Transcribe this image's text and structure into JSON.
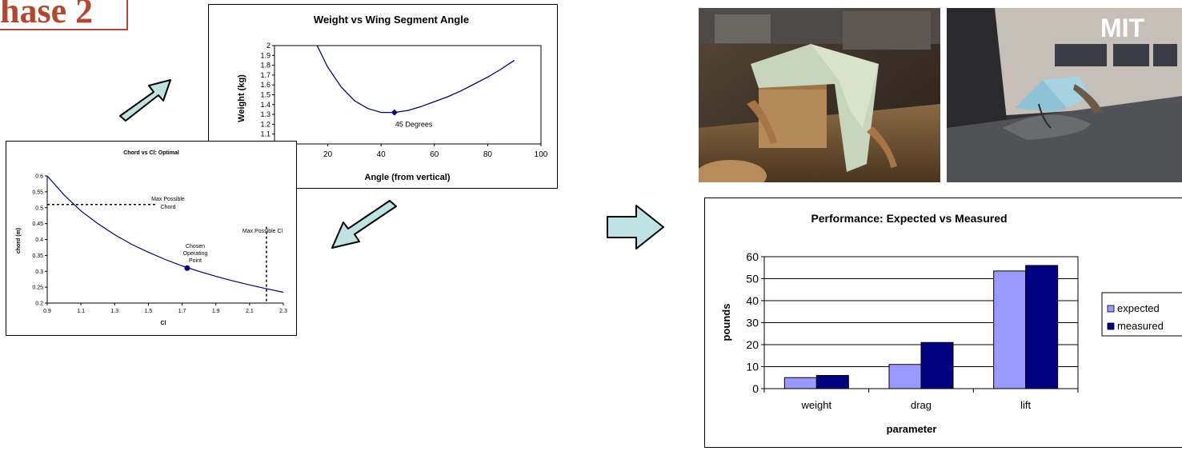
{
  "phase_label": "hase 2",
  "charts": {
    "weight": {
      "title": "Weight vs Wing Segment Angle",
      "xlabel": "Angle (from vertical)",
      "ylabel": "Weight (kg)",
      "annotation": "45 Degrees"
    },
    "chord": {
      "title": "Chord vs Cl: Optimal",
      "xlabel": "Cl",
      "ylabel": "chord (m)",
      "annotation_chord": "Max Possible Chord",
      "annotation_cl": "Max Possible Cl",
      "annotation_point": "Chosen Operating Point"
    },
    "performance": {
      "title": "Performance: Expected vs Measured",
      "xlabel": "parameter",
      "ylabel": "pounds"
    }
  },
  "photos": {
    "right_label": "MIT"
  },
  "colors": {
    "arrow_fill": "#bfe3e3",
    "curve": "#000080",
    "expected": "#9999ff",
    "measured": "#000080",
    "phase": "#b5472c"
  },
  "chart_data": [
    {
      "type": "line",
      "title": "Weight vs Wing Segment Angle",
      "xlabel": "Angle (from vertical)",
      "ylabel": "Weight (kg)",
      "xlim": [
        0,
        100
      ],
      "ylim": [
        1,
        2
      ],
      "xticks": [
        20,
        40,
        60,
        80,
        100
      ],
      "yticks": [
        1.1,
        1.2,
        1.3,
        1.4,
        1.5,
        1.6,
        1.7,
        1.8,
        1.9,
        2
      ],
      "x": [
        16,
        20,
        25,
        30,
        35,
        40,
        45,
        50,
        55,
        60,
        65,
        70,
        75,
        80,
        85,
        90
      ],
      "y": [
        2.0,
        1.78,
        1.58,
        1.44,
        1.36,
        1.32,
        1.32,
        1.34,
        1.38,
        1.43,
        1.48,
        1.54,
        1.61,
        1.68,
        1.76,
        1.85
      ],
      "marker": {
        "x": 45,
        "y": 1.32,
        "label": "45 Degrees"
      }
    },
    {
      "type": "line",
      "title": "Chord vs Cl: Optimal",
      "xlabel": "Cl",
      "ylabel": "chord (m)",
      "xlim": [
        0.9,
        2.3
      ],
      "ylim": [
        0.2,
        0.6
      ],
      "xticks": [
        0.9,
        1.1,
        1.3,
        1.5,
        1.7,
        1.9,
        2.1,
        2.3
      ],
      "yticks": [
        0.2,
        0.25,
        0.3,
        0.35,
        0.4,
        0.45,
        0.5,
        0.55,
        0.6
      ],
      "x": [
        0.9,
        1.0,
        1.1,
        1.2,
        1.3,
        1.4,
        1.5,
        1.6,
        1.7,
        1.8,
        1.9,
        2.0,
        2.1,
        2.2,
        2.3
      ],
      "y": [
        0.6,
        0.54,
        0.49,
        0.45,
        0.415,
        0.385,
        0.36,
        0.337,
        0.317,
        0.3,
        0.284,
        0.27,
        0.257,
        0.245,
        0.234
      ],
      "max_chord": 0.51,
      "max_cl": 2.2,
      "marker": {
        "x": 1.73,
        "y": 0.31,
        "label": "Chosen Operating Point"
      }
    },
    {
      "type": "bar",
      "title": "Performance: Expected vs Measured",
      "xlabel": "parameter",
      "ylabel": "pounds",
      "categories": [
        "weight",
        "drag",
        "lift"
      ],
      "ylim": [
        0,
        60
      ],
      "yticks": [
        0,
        10,
        20,
        30,
        40,
        50,
        60
      ],
      "legend": "right",
      "series": [
        {
          "name": "expected",
          "values": [
            5,
            11,
            53.5
          ]
        },
        {
          "name": "measured",
          "values": [
            6,
            21,
            56
          ]
        }
      ]
    }
  ]
}
